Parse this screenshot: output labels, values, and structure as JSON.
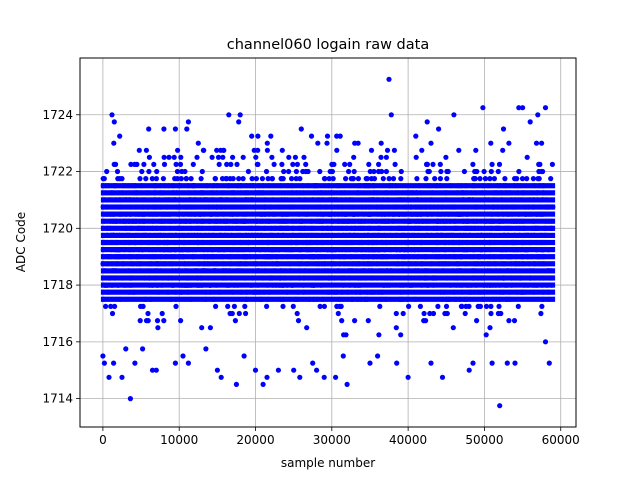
{
  "chart_data": {
    "type": "scatter",
    "title": "channel060 logain raw data",
    "xlabel": "sample number",
    "ylabel": "ADC Code",
    "xlim": [
      -3000,
      62000
    ],
    "ylim": [
      1713.0,
      1726.0
    ],
    "x_ticks": [
      0,
      10000,
      20000,
      30000,
      40000,
      50000,
      60000
    ],
    "x_tick_labels": [
      "0",
      "10000",
      "20000",
      "30000",
      "40000",
      "50000",
      "60000"
    ],
    "y_ticks": [
      1714,
      1716,
      1718,
      1720,
      1722,
      1724
    ],
    "y_tick_labels": [
      "1714",
      "1716",
      "1718",
      "1720",
      "1722",
      "1724"
    ],
    "grid": true,
    "marker_color": "#0000ff",
    "series": [
      {
        "x_range": [
          0,
          59000
        ],
        "dense_band": [
          1716.25,
          1723.25
        ],
        "outliers": [
          {
            "x": 0,
            "y": 1715.5
          },
          {
            "x": 200,
            "y": 1715.25
          },
          {
            "x": 800,
            "y": 1714.75
          },
          {
            "x": 1200,
            "y": 1724.0
          },
          {
            "x": 1500,
            "y": 1723.75
          },
          {
            "x": 1400,
            "y": 1715.25
          },
          {
            "x": 2500,
            "y": 1714.75
          },
          {
            "x": 3000,
            "y": 1715.75
          },
          {
            "x": 3600,
            "y": 1714.0
          },
          {
            "x": 4200,
            "y": 1715.25
          },
          {
            "x": 5200,
            "y": 1715.75
          },
          {
            "x": 6000,
            "y": 1723.5
          },
          {
            "x": 6500,
            "y": 1715.0
          },
          {
            "x": 7000,
            "y": 1715.0
          },
          {
            "x": 8000,
            "y": 1723.5
          },
          {
            "x": 9500,
            "y": 1723.5
          },
          {
            "x": 9500,
            "y": 1715.25
          },
          {
            "x": 10500,
            "y": 1715.5
          },
          {
            "x": 11000,
            "y": 1723.5
          },
          {
            "x": 11200,
            "y": 1715.25
          },
          {
            "x": 11200,
            "y": 1723.75
          },
          {
            "x": 13500,
            "y": 1715.75
          },
          {
            "x": 15000,
            "y": 1715.0
          },
          {
            "x": 15500,
            "y": 1714.75
          },
          {
            "x": 16500,
            "y": 1724.0
          },
          {
            "x": 17500,
            "y": 1714.5
          },
          {
            "x": 17800,
            "y": 1723.75
          },
          {
            "x": 18000,
            "y": 1724.0
          },
          {
            "x": 18500,
            "y": 1715.5
          },
          {
            "x": 19500,
            "y": 1723.25
          },
          {
            "x": 20000,
            "y": 1715.0
          },
          {
            "x": 21000,
            "y": 1714.5
          },
          {
            "x": 21500,
            "y": 1714.75
          },
          {
            "x": 23000,
            "y": 1715.0
          },
          {
            "x": 25000,
            "y": 1715.0
          },
          {
            "x": 25800,
            "y": 1714.75
          },
          {
            "x": 26000,
            "y": 1723.5
          },
          {
            "x": 27500,
            "y": 1715.25
          },
          {
            "x": 28000,
            "y": 1715.0
          },
          {
            "x": 29000,
            "y": 1714.75
          },
          {
            "x": 30500,
            "y": 1714.75
          },
          {
            "x": 31500,
            "y": 1715.5
          },
          {
            "x": 32000,
            "y": 1714.5
          },
          {
            "x": 35000,
            "y": 1715.25
          },
          {
            "x": 36000,
            "y": 1715.5
          },
          {
            "x": 37500,
            "y": 1725.25
          },
          {
            "x": 37800,
            "y": 1724.0
          },
          {
            "x": 38500,
            "y": 1715.25
          },
          {
            "x": 40000,
            "y": 1714.75
          },
          {
            "x": 41000,
            "y": 1723.25
          },
          {
            "x": 43000,
            "y": 1715.25
          },
          {
            "x": 44000,
            "y": 1723.5
          },
          {
            "x": 44500,
            "y": 1714.75
          },
          {
            "x": 46000,
            "y": 1724.0
          },
          {
            "x": 48000,
            "y": 1715.0
          },
          {
            "x": 48500,
            "y": 1715.25
          },
          {
            "x": 49800,
            "y": 1724.25
          },
          {
            "x": 51000,
            "y": 1715.25
          },
          {
            "x": 52000,
            "y": 1713.75
          },
          {
            "x": 53000,
            "y": 1715.25
          },
          {
            "x": 54000,
            "y": 1715.25
          },
          {
            "x": 54500,
            "y": 1724.25
          },
          {
            "x": 55000,
            "y": 1724.25
          },
          {
            "x": 56000,
            "y": 1723.75
          },
          {
            "x": 57000,
            "y": 1724.0
          },
          {
            "x": 58000,
            "y": 1724.25
          },
          {
            "x": 58500,
            "y": 1715.25
          },
          {
            "x": 58000,
            "y": 1716.0
          },
          {
            "x": 2200,
            "y": 1723.25
          },
          {
            "x": 12500,
            "y": 1723.0
          },
          {
            "x": 22000,
            "y": 1723.25
          },
          {
            "x": 33000,
            "y": 1723.0
          },
          {
            "x": 42500,
            "y": 1723.75
          },
          {
            "x": 52500,
            "y": 1723.5
          }
        ]
      }
    ]
  }
}
